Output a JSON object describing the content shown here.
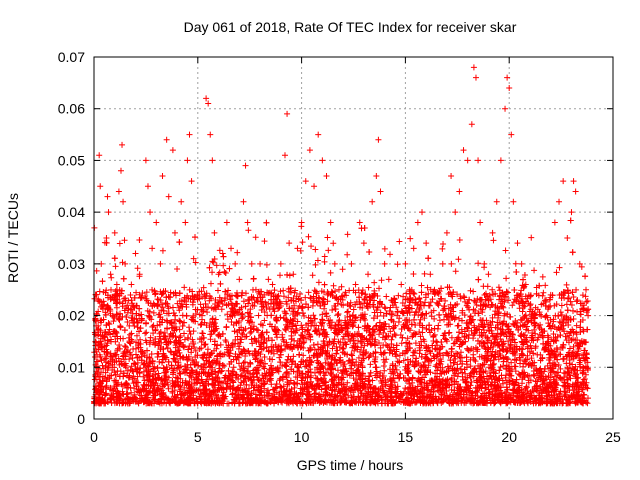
{
  "chart_data": {
    "type": "scatter",
    "title": "Day 061 of 2018, Rate Of TEC Index for receiver skar",
    "xlabel": "GPS time / hours",
    "ylabel": "ROTI / TECUs",
    "xlim": [
      0,
      25
    ],
    "ylim": [
      0,
      0.07
    ],
    "xticks": [
      "0",
      "5",
      "10",
      "15",
      "20",
      "25"
    ],
    "yticks": [
      "0",
      "0.01",
      "0.02",
      "0.03",
      "0.04",
      "0.05",
      "0.06",
      "0.07"
    ],
    "grid": true,
    "marker": "+",
    "color": "#ff0000",
    "series": [
      {
        "points": [
          [
            0.05,
            0.012
          ],
          [
            0.1,
            0.024
          ],
          [
            0.2,
            0.018
          ],
          [
            0.25,
            0.051
          ],
          [
            0.3,
            0.045
          ],
          [
            0.35,
            0.03
          ],
          [
            0.4,
            0.022
          ],
          [
            0.5,
            0.016
          ],
          [
            0.6,
            0.035
          ],
          [
            0.65,
            0.043
          ],
          [
            0.7,
            0.04
          ],
          [
            0.8,
            0.028
          ],
          [
            0.9,
            0.02
          ],
          [
            1.0,
            0.036
          ],
          [
            1.1,
            0.026
          ],
          [
            1.2,
            0.044
          ],
          [
            1.3,
            0.048
          ],
          [
            1.35,
            0.053
          ],
          [
            1.4,
            0.042
          ],
          [
            1.5,
            0.03
          ],
          [
            1.6,
            0.022
          ],
          [
            1.7,
            0.018
          ],
          [
            1.8,
            0.026
          ],
          [
            2.0,
            0.032
          ],
          [
            2.2,
            0.028
          ],
          [
            2.5,
            0.05
          ],
          [
            2.6,
            0.045
          ],
          [
            2.7,
            0.04
          ],
          [
            2.8,
            0.033
          ],
          [
            3.0,
            0.038
          ],
          [
            3.2,
            0.03
          ],
          [
            3.3,
            0.047
          ],
          [
            3.5,
            0.054
          ],
          [
            3.6,
            0.043
          ],
          [
            3.8,
            0.052
          ],
          [
            3.9,
            0.036
          ],
          [
            4.0,
            0.029
          ],
          [
            4.2,
            0.042
          ],
          [
            4.4,
            0.038
          ],
          [
            4.5,
            0.05
          ],
          [
            4.6,
            0.055
          ],
          [
            4.7,
            0.046
          ],
          [
            4.8,
            0.031
          ],
          [
            5.0,
            0.024
          ],
          [
            5.2,
            0.02
          ],
          [
            5.4,
            0.062
          ],
          [
            5.5,
            0.061
          ],
          [
            5.6,
            0.055
          ],
          [
            5.7,
            0.05
          ],
          [
            5.8,
            0.036
          ],
          [
            6.0,
            0.028
          ],
          [
            6.2,
            0.032
          ],
          [
            6.4,
            0.038
          ],
          [
            6.6,
            0.033
          ],
          [
            6.8,
            0.03
          ],
          [
            7.0,
            0.027
          ],
          [
            7.2,
            0.042
          ],
          [
            7.3,
            0.049
          ],
          [
            7.4,
            0.038
          ],
          [
            7.6,
            0.03
          ],
          [
            7.8,
            0.025
          ],
          [
            8.0,
            0.03
          ],
          [
            8.2,
            0.024
          ],
          [
            8.4,
            0.027
          ],
          [
            8.6,
            0.026
          ],
          [
            8.8,
            0.022
          ],
          [
            9.0,
            0.03
          ],
          [
            9.2,
            0.051
          ],
          [
            9.3,
            0.059
          ],
          [
            9.4,
            0.034
          ],
          [
            9.6,
            0.028
          ],
          [
            9.8,
            0.033
          ],
          [
            10.0,
            0.038
          ],
          [
            10.2,
            0.046
          ],
          [
            10.4,
            0.052
          ],
          [
            10.6,
            0.045
          ],
          [
            10.8,
            0.055
          ],
          [
            11.0,
            0.05
          ],
          [
            11.2,
            0.047
          ],
          [
            11.4,
            0.038
          ],
          [
            11.6,
            0.03
          ],
          [
            11.8,
            0.025
          ],
          [
            12.0,
            0.022
          ],
          [
            12.2,
            0.018
          ],
          [
            12.4,
            0.03
          ],
          [
            12.6,
            0.026
          ],
          [
            12.8,
            0.038
          ],
          [
            13.0,
            0.034
          ],
          [
            13.2,
            0.028
          ],
          [
            13.4,
            0.042
          ],
          [
            13.6,
            0.047
          ],
          [
            13.7,
            0.054
          ],
          [
            13.8,
            0.044
          ],
          [
            14.0,
            0.03
          ],
          [
            14.2,
            0.027
          ],
          [
            14.4,
            0.022
          ],
          [
            14.6,
            0.02
          ],
          [
            14.8,
            0.026
          ],
          [
            15.0,
            0.03
          ],
          [
            15.2,
            0.025
          ],
          [
            15.4,
            0.033
          ],
          [
            15.6,
            0.038
          ],
          [
            15.8,
            0.04
          ],
          [
            16.0,
            0.034
          ],
          [
            16.2,
            0.028
          ],
          [
            16.4,
            0.025
          ],
          [
            16.6,
            0.022
          ],
          [
            16.8,
            0.03
          ],
          [
            17.0,
            0.036
          ],
          [
            17.2,
            0.047
          ],
          [
            17.4,
            0.04
          ],
          [
            17.6,
            0.044
          ],
          [
            17.8,
            0.052
          ],
          [
            18.0,
            0.05
          ],
          [
            18.2,
            0.057
          ],
          [
            18.3,
            0.068
          ],
          [
            18.4,
            0.066
          ],
          [
            18.5,
            0.05
          ],
          [
            18.6,
            0.038
          ],
          [
            18.8,
            0.03
          ],
          [
            19.0,
            0.028
          ],
          [
            19.2,
            0.036
          ],
          [
            19.4,
            0.042
          ],
          [
            19.6,
            0.05
          ],
          [
            19.8,
            0.06
          ],
          [
            19.9,
            0.066
          ],
          [
            20.0,
            0.064
          ],
          [
            20.1,
            0.055
          ],
          [
            20.2,
            0.042
          ],
          [
            20.4,
            0.034
          ],
          [
            20.6,
            0.03
          ],
          [
            20.8,
            0.026
          ],
          [
            21.0,
            0.022
          ],
          [
            21.2,
            0.02
          ],
          [
            21.4,
            0.018
          ],
          [
            21.6,
            0.016
          ],
          [
            21.8,
            0.02
          ],
          [
            22.0,
            0.024
          ],
          [
            22.2,
            0.038
          ],
          [
            22.4,
            0.042
          ],
          [
            22.6,
            0.046
          ],
          [
            22.8,
            0.035
          ],
          [
            23.0,
            0.04
          ],
          [
            23.1,
            0.046
          ],
          [
            23.2,
            0.044
          ],
          [
            23.4,
            0.03
          ],
          [
            23.6,
            0.022
          ],
          [
            23.7,
            0.025
          ],
          [
            23.8,
            0.02
          ]
        ]
      }
    ]
  }
}
